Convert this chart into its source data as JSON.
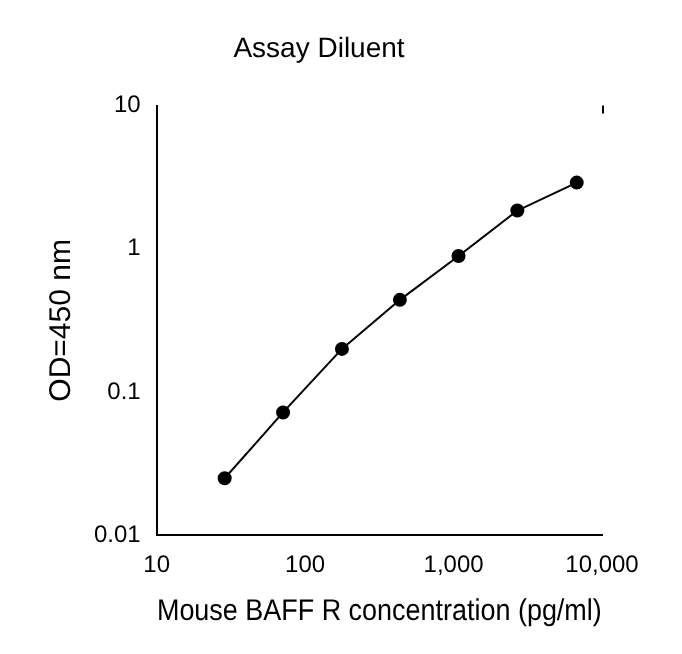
{
  "chart_data": {
    "type": "line",
    "title": "Assay Diluent",
    "xlabel": "Mouse BAFF R concentration (pg/ml)",
    "ylabel": "OD=450 nm",
    "x": [
      28.7,
      71,
      177,
      435,
      1080,
      2690,
      6760
    ],
    "series": [
      {
        "color": "#000000",
        "values": [
          0.025,
          0.072,
          0.2,
          0.44,
          0.89,
          1.85,
          2.9
        ]
      }
    ],
    "log": "xy",
    "xlim": [
      10,
      10000
    ],
    "ylim": [
      0.01,
      10
    ],
    "xticks": [
      10,
      100,
      {
        "value": 1000,
        "label": "1,000"
      },
      {
        "value": 10000,
        "label": "10,000"
      }
    ],
    "yticks": [
      0.01,
      0.1,
      1,
      10
    ],
    "grid": false,
    "legend": false,
    "marker": "circle",
    "line_style": "solid"
  }
}
